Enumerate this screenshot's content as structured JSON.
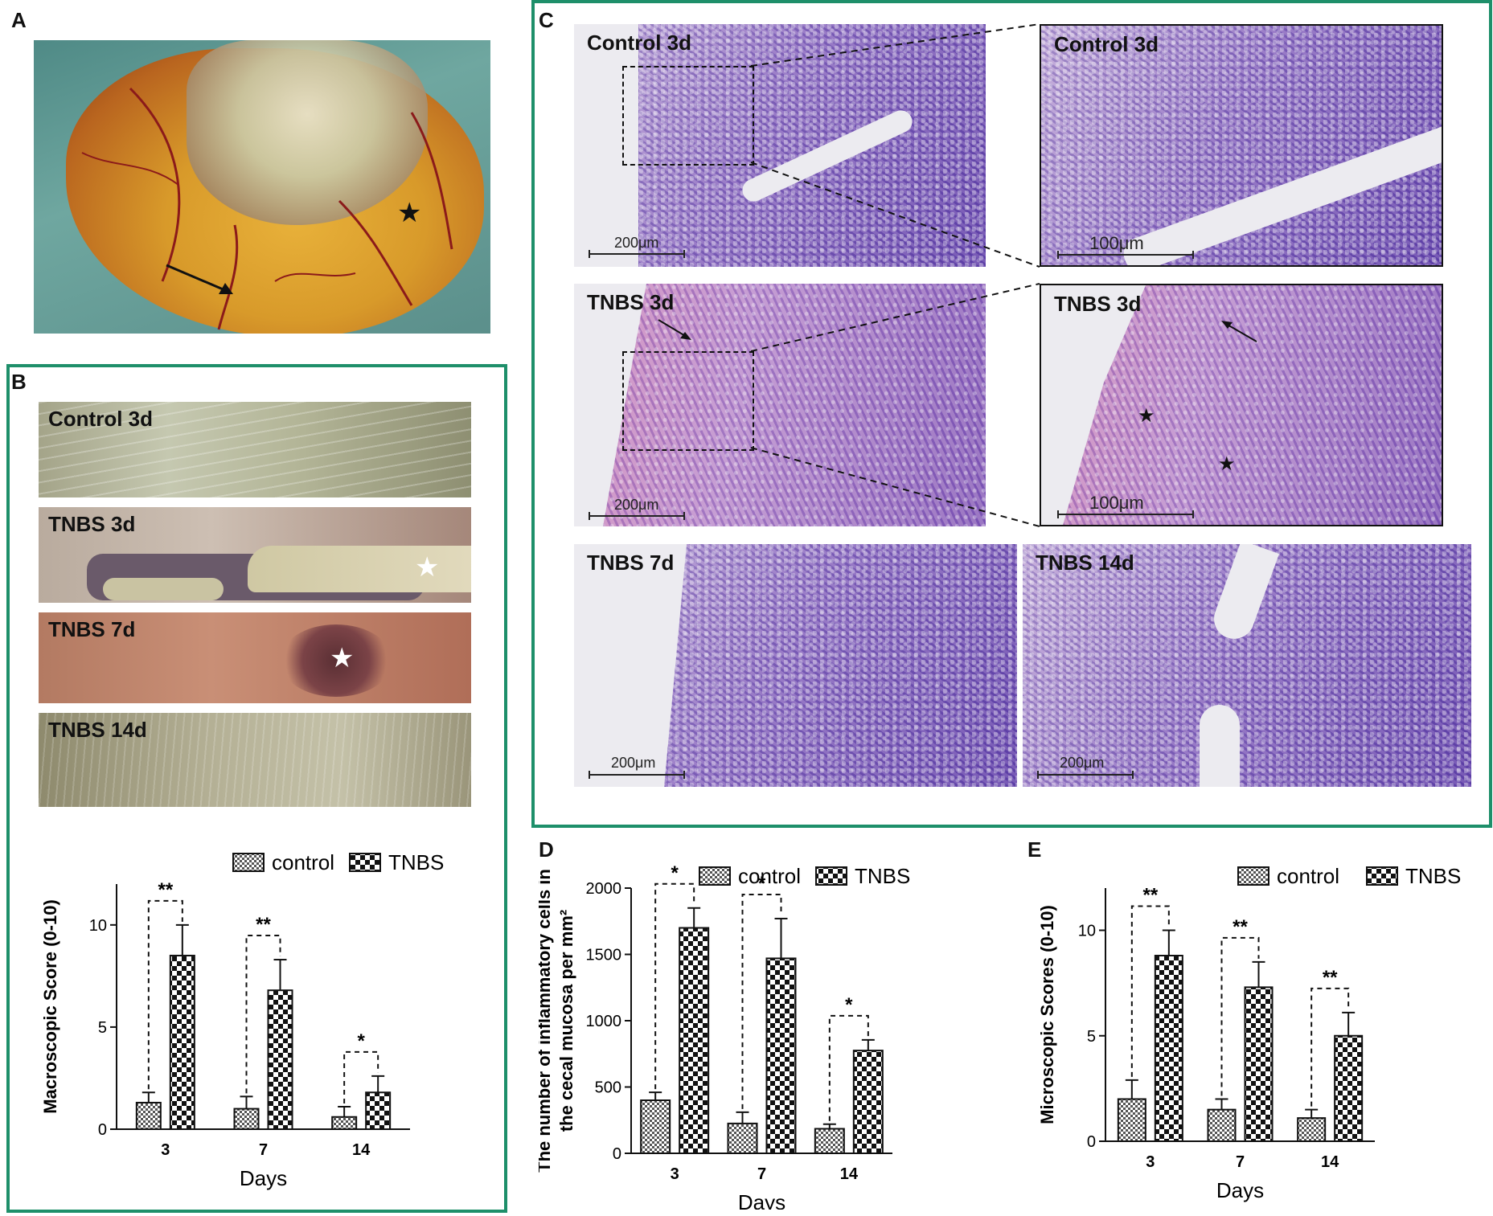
{
  "panels": {
    "A": {
      "letter": "A"
    },
    "B": {
      "letter": "B",
      "photo_labels": [
        "Control 3d",
        "TNBS 3d",
        "TNBS 7d",
        "TNBS 14d"
      ]
    },
    "C": {
      "letter": "C",
      "labels": {
        "control_low": "Control 3d",
        "control_high": "Control 3d",
        "tnbs3_low": "TNBS 3d",
        "tnbs3_high": "TNBS 3d",
        "tnbs7": "TNBS 7d",
        "tnbs14": "TNBS 14d"
      },
      "scale": {
        "low": "200μm",
        "high": "100μm"
      }
    },
    "D": {
      "letter": "D"
    },
    "E": {
      "letter": "E"
    }
  },
  "chart_data": [
    {
      "id": "B",
      "type": "bar",
      "xlabel": "Days",
      "ylabel": "Macroscopic Score (0-10)",
      "categories": [
        "3",
        "7",
        "14"
      ],
      "ylim": [
        0,
        12
      ],
      "yticks": [
        "0",
        "5",
        "10"
      ],
      "series": [
        {
          "name": "control",
          "values": [
            1.3,
            1.0,
            0.6
          ],
          "errors": [
            0.5,
            0.6,
            0.5
          ]
        },
        {
          "name": "TNBS",
          "values": [
            8.5,
            6.8,
            1.8
          ],
          "errors": [
            1.5,
            1.5,
            0.8
          ]
        }
      ],
      "significance": [
        "**",
        "**",
        "*"
      ],
      "legend": "top-right"
    },
    {
      "id": "D",
      "type": "bar",
      "xlabel": "Days",
      "ylabel": "The number of inflammatory cells in the cecal mucosa per mm²",
      "categories": [
        "3",
        "7",
        "14"
      ],
      "ylim": [
        0,
        2000
      ],
      "yticks": [
        "0",
        "500",
        "1000",
        "1500",
        "2000"
      ],
      "series": [
        {
          "name": "control",
          "values": [
            400,
            225,
            185
          ],
          "errors": [
            60,
            85,
            35
          ]
        },
        {
          "name": "TNBS",
          "values": [
            1700,
            1470,
            775
          ],
          "errors": [
            150,
            300,
            80
          ]
        }
      ],
      "significance": [
        "*",
        "*",
        "*"
      ],
      "legend": "top-right"
    },
    {
      "id": "E",
      "type": "bar",
      "xlabel": "Days",
      "ylabel": "Microscopic Scores (0-10)",
      "categories": [
        "3",
        "7",
        "14"
      ],
      "ylim": [
        0,
        12
      ],
      "yticks": [
        "0",
        "5",
        "10"
      ],
      "series": [
        {
          "name": "control",
          "values": [
            2.0,
            1.5,
            1.1
          ],
          "errors": [
            0.9,
            0.5,
            0.4
          ]
        },
        {
          "name": "TNBS",
          "values": [
            8.8,
            7.3,
            5.0
          ],
          "errors": [
            1.2,
            1.2,
            1.1
          ]
        }
      ],
      "significance": [
        "**",
        "**",
        "**"
      ],
      "legend": "top-right"
    }
  ]
}
